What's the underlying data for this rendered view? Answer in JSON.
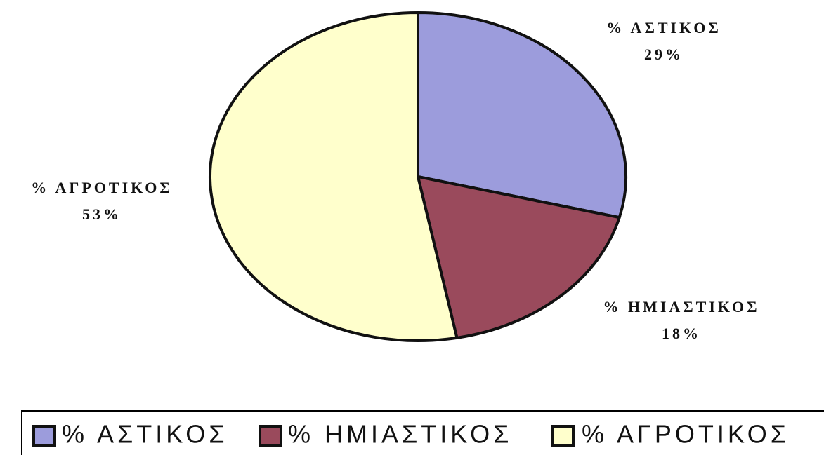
{
  "chart_data": {
    "type": "pie",
    "categories": [
      "% ΑΣΤΙΚΟΣ",
      "% ΗΜΙΑΣΤΙΚΟΣ",
      "% ΑΓΡΟΤΙΚΟΣ"
    ],
    "values": [
      29,
      18,
      53
    ],
    "value_labels": [
      "29%",
      "18%",
      "53%"
    ],
    "colors": [
      "#9c9cdc",
      "#9a4a5c",
      "#ffffcc"
    ],
    "legend": "bottom"
  }
}
